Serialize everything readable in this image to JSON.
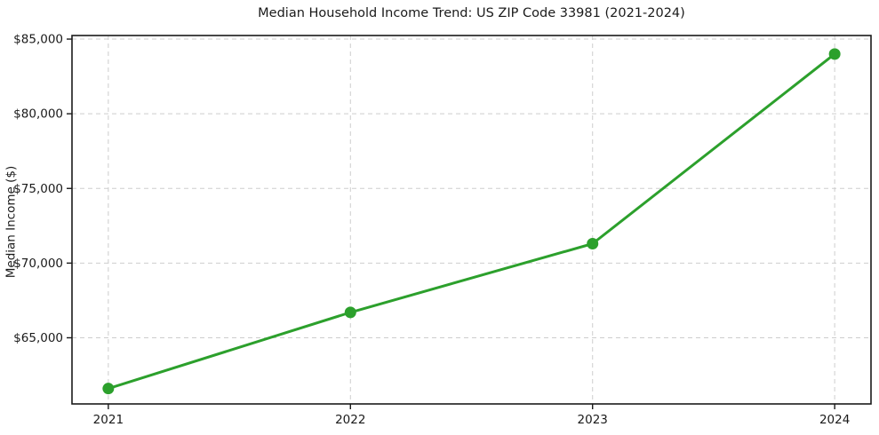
{
  "chart_data": {
    "type": "line",
    "title": "Median Household Income Trend: US ZIP Code 33981 (2021-2024)",
    "xlabel": "",
    "ylabel": "Median Income ($)",
    "x": [
      2021,
      2022,
      2023,
      2024
    ],
    "series": [
      {
        "name": "Median Household Income",
        "values": [
          61600,
          66700,
          71300,
          84000
        ]
      }
    ],
    "x_tick_labels": [
      "2021",
      "2022",
      "2023",
      "2024"
    ],
    "y_ticks": [
      65000,
      70000,
      75000,
      80000,
      85000
    ],
    "y_tick_labels": [
      "$65,000",
      "$70,000",
      "$75,000",
      "$80,000",
      "$85,000"
    ],
    "xlim": [
      2020.85,
      2024.15
    ],
    "ylim": [
      60570,
      85240
    ],
    "grid": "both",
    "grid_style": "dashed",
    "legend": "none",
    "line_color": "#2ca02c",
    "grid_color": "#cdcdcd",
    "spine_color": "#1a1a1a",
    "background": "#ffffff",
    "marker": "circle"
  }
}
